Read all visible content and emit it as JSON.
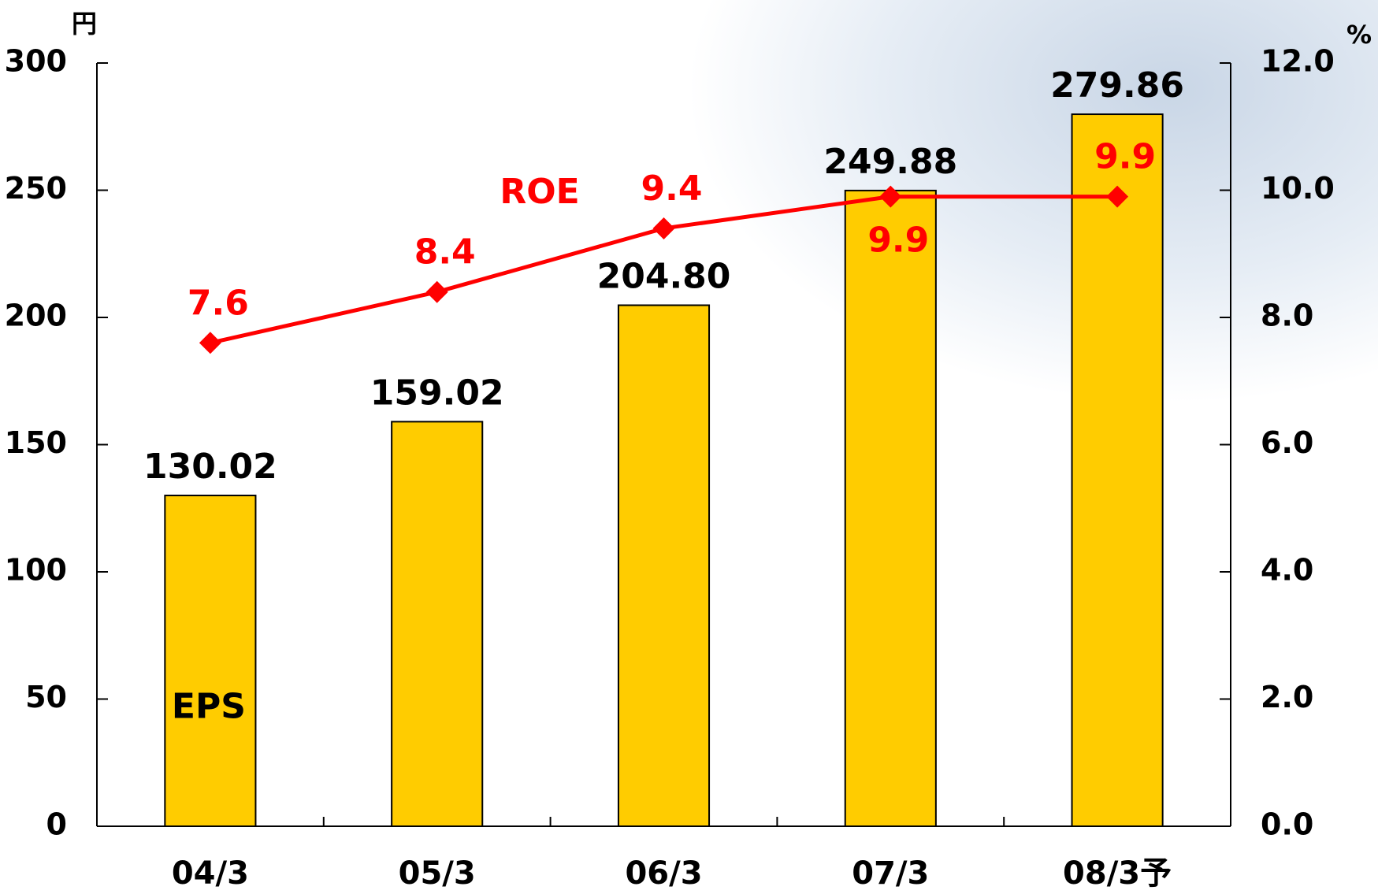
{
  "chart_data": {
    "type": "bar",
    "y_unit": "円",
    "y2_unit": "%",
    "categories": [
      "04/3",
      "05/3",
      "06/3",
      "07/3",
      "08/3予"
    ],
    "series": [
      {
        "name": "EPS",
        "color": "#ffcc00",
        "values": [
          130.02,
          159.02,
          204.8,
          249.88,
          279.86
        ],
        "value_labels": [
          "130.02",
          "159.02",
          "204.80",
          "249.88",
          "279.86"
        ]
      },
      {
        "name": "ROE",
        "type": "line",
        "axis": "y2",
        "color": "#ff0000",
        "values": [
          7.6,
          8.4,
          9.4,
          9.9,
          9.9
        ]
      }
    ],
    "ylim": [
      0,
      300
    ],
    "yticks": [
      0,
      50,
      100,
      150,
      200,
      250,
      300
    ],
    "y2lim": [
      0,
      12
    ],
    "y2ticks": [
      {
        "value": 0,
        "label": "0.0"
      },
      {
        "value": 2,
        "label": "2.0"
      },
      {
        "value": 4,
        "label": "4.0"
      },
      {
        "value": 6,
        "label": "6.0"
      },
      {
        "value": 8,
        "label": "8.0"
      },
      {
        "value": 10,
        "label": "10.0"
      },
      {
        "value": 12,
        "label": "12.0"
      }
    ]
  }
}
